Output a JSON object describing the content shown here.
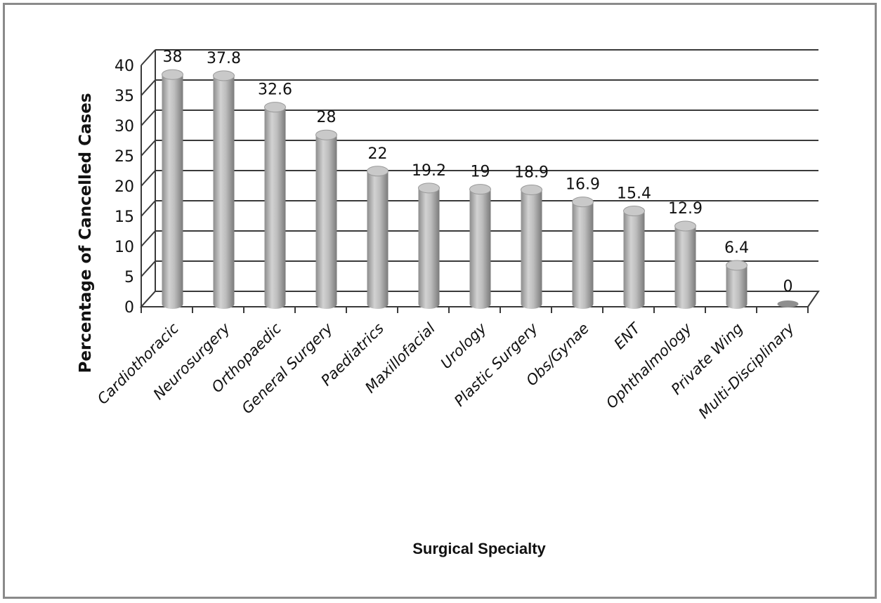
{
  "chart_data": {
    "type": "bar",
    "style": "3d-cylinder",
    "title": "",
    "xlabel": "Surgical Specialty",
    "ylabel": "Percentage of Cancelled Cases",
    "ylim": [
      0,
      40
    ],
    "yticks": [
      0,
      5,
      10,
      15,
      20,
      25,
      30,
      35,
      40
    ],
    "grid": true,
    "legend": "none",
    "bar_color": "#b4b4b4",
    "categories": [
      "Cardiothoracic",
      "Neurosurgery",
      "Orthopaedic",
      "General Surgery",
      "Paediatrics",
      "Maxillofacial",
      "Urology",
      "Plastic Surgery",
      "Obs/Gynae",
      "ENT",
      "Ophthalmology",
      "Private Wing",
      "Multi-Disciplinary"
    ],
    "values": [
      38,
      37.8,
      32.6,
      28,
      22,
      19.2,
      19,
      18.9,
      16.9,
      15.4,
      12.9,
      6.4,
      0
    ],
    "data_labels": [
      "38",
      "37.8",
      "32.6",
      "28",
      "22",
      "19.2",
      "19",
      "18.9",
      "16.9",
      "15.4",
      "12.9",
      "6.4",
      "0"
    ]
  }
}
